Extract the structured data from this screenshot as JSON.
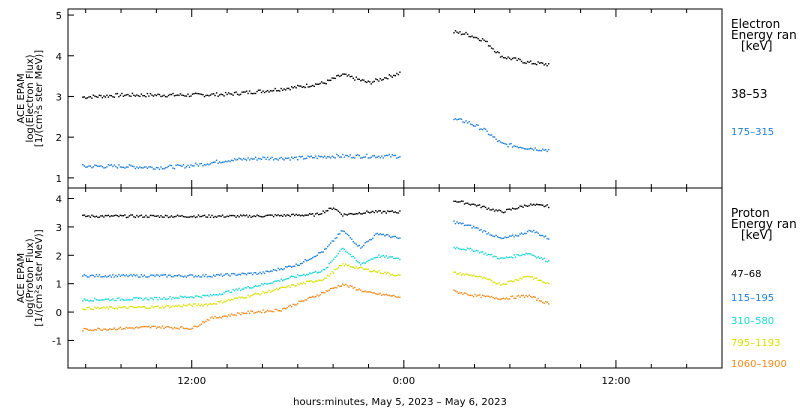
{
  "chart_data": [
    {
      "type": "scatter",
      "panel": "electron",
      "ylabel_lines": [
        "ACE EPAM",
        "log(Electron Flux)",
        "[1/(cm²s ster MeV)]"
      ],
      "ylim": [
        0.8,
        5.1
      ],
      "yticks": [
        1,
        2,
        3,
        4,
        5
      ],
      "legend_title_lines": [
        "Electron",
        "Energy ran",
        "[keV]"
      ],
      "series": [
        {
          "name": "38–53",
          "color": "#000000",
          "x": [
            5.8,
            8,
            10,
            12,
            14,
            16,
            18,
            19.5,
            20.5,
            22,
            23.8,
            26.8,
            27.5,
            28.5,
            29.5,
            31,
            32.2
          ],
          "y": [
            3.0,
            3.05,
            3.05,
            3.05,
            3.07,
            3.15,
            3.25,
            3.35,
            3.55,
            3.35,
            3.6,
            4.6,
            4.55,
            4.4,
            4.0,
            3.85,
            3.8
          ]
        },
        {
          "name": "175–315",
          "color": "#1e7fd6",
          "x": [
            5.8,
            8,
            10,
            11.5,
            12.5,
            14,
            16,
            18,
            20,
            22,
            23.8,
            26.8,
            27.5,
            28.5,
            29.5,
            31,
            32.2
          ],
          "y": [
            1.3,
            1.3,
            1.27,
            1.3,
            1.35,
            1.45,
            1.5,
            1.5,
            1.55,
            1.55,
            1.55,
            2.45,
            2.4,
            2.2,
            1.85,
            1.75,
            1.7
          ]
        }
      ]
    },
    {
      "type": "scatter",
      "panel": "proton",
      "ylabel_lines": [
        "ACE EPAM",
        "log(Proton Flux)",
        "[1/(cm²s ster MeV)]"
      ],
      "ylim": [
        -1.9,
        4.3
      ],
      "yticks": [
        -1,
        0,
        1,
        2,
        3,
        4
      ],
      "legend_title_lines": [
        "Proton",
        "Energy ran",
        "[keV]"
      ],
      "series": [
        {
          "name": "47–68",
          "color": "#000000",
          "x": [
            5.8,
            10,
            15,
            19,
            20,
            20.5,
            22,
            23.8,
            26.8,
            28,
            29.5,
            31,
            32.2
          ],
          "y": [
            3.4,
            3.4,
            3.4,
            3.45,
            3.7,
            3.45,
            3.55,
            3.55,
            3.95,
            3.8,
            3.55,
            3.8,
            3.75
          ]
        },
        {
          "name": "115–195",
          "color": "#1e7fd6",
          "x": [
            5.8,
            10,
            13,
            16,
            18,
            19.5,
            20.5,
            21.5,
            22.5,
            23.8,
            26.8,
            28,
            29.5,
            30.5,
            31.2,
            32.2
          ],
          "y": [
            1.3,
            1.3,
            1.3,
            1.4,
            1.7,
            2.2,
            2.9,
            2.3,
            2.8,
            2.6,
            3.2,
            3.0,
            2.6,
            2.75,
            2.9,
            2.6
          ]
        },
        {
          "name": "310–580",
          "color": "#19d6d6",
          "x": [
            5.8,
            10,
            13,
            16,
            18,
            19.5,
            20.5,
            21.5,
            22.5,
            23.8,
            26.8,
            28,
            29.5,
            31,
            32.2
          ],
          "y": [
            0.45,
            0.5,
            0.6,
            1.0,
            1.3,
            1.5,
            2.3,
            1.7,
            2.0,
            1.9,
            2.3,
            2.2,
            1.9,
            2.1,
            1.8
          ]
        },
        {
          "name": "795–1193",
          "color": "#d8e000",
          "x": [
            5.8,
            10,
            13,
            16,
            18,
            19.5,
            20.5,
            22,
            23.8,
            26.8,
            28,
            29.5,
            31,
            32.2
          ],
          "y": [
            0.15,
            0.2,
            0.3,
            0.7,
            1.0,
            1.2,
            1.7,
            1.5,
            1.3,
            1.4,
            1.3,
            1.0,
            1.3,
            1.0
          ]
        },
        {
          "name": "1060–1900",
          "color": "#f08a1c",
          "x": [
            5.8,
            8,
            10,
            12,
            13,
            15,
            17,
            19,
            20.5,
            22,
            23.8,
            26.8,
            28,
            29.5,
            31,
            32.2
          ],
          "y": [
            -0.6,
            -0.55,
            -0.5,
            -0.55,
            -0.2,
            0.0,
            0.1,
            0.6,
            1.0,
            0.7,
            0.55,
            0.75,
            0.6,
            0.5,
            0.6,
            0.3
          ]
        }
      ]
    }
  ],
  "x_axis": {
    "xlim": [
      5,
      42
    ],
    "ticks": [
      12,
      24,
      36
    ],
    "tick_labels": [
      "12:00",
      "0:00",
      "12:00"
    ],
    "title": "hours:minutes, May  5, 2023 – May  6, 2023"
  }
}
